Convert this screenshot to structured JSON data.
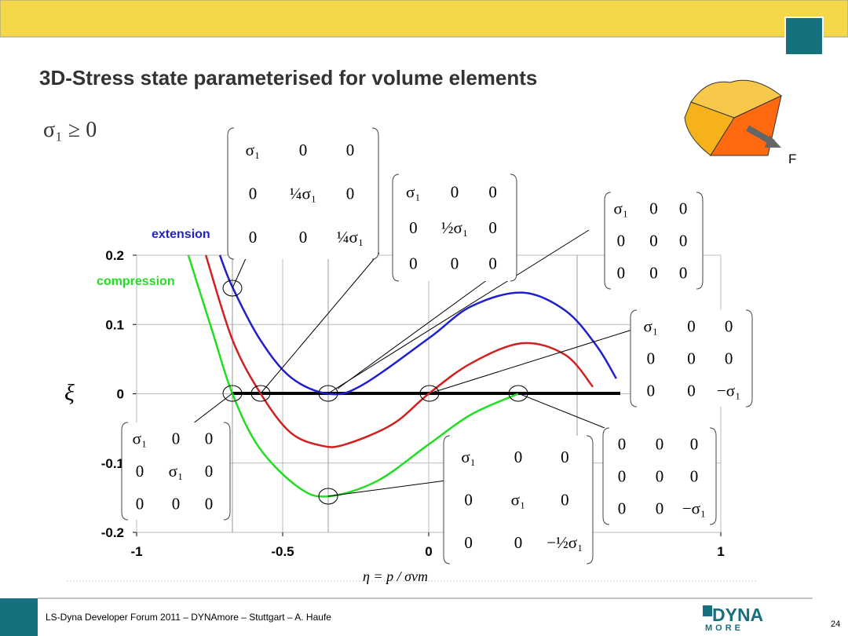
{
  "slide_title": "3D-Stress state parameterised for volume elements",
  "condition": "σ₁ ≥ 0",
  "force_label": "F",
  "footer": "LS-Dyna Developer Forum 2011 – DYNAmore – Stuttgart – A. Haufe",
  "page_number": "24",
  "logo": {
    "top": "DYNA",
    "bottom": "MORE"
  },
  "chart_data": {
    "type": "line",
    "y_label": "ξ",
    "x_label": "η = p / σvm",
    "xlim": [
      -1,
      1
    ],
    "ylim": [
      -0.2,
      0.2
    ],
    "xticks": [
      -1,
      -0.5,
      0,
      1
    ],
    "yticks": [
      -0.2,
      -0.1,
      0,
      0.1,
      0.2
    ],
    "grid": true,
    "series": [
      {
        "name": "extension",
        "color": "#1f1fd0",
        "x": [
          -0.715,
          -0.672,
          -0.58,
          -0.473,
          -0.344,
          -0.23,
          0,
          0.145,
          0.32,
          0.468,
          0.575,
          0.642
        ],
        "values": [
          0.2,
          0.154,
          0.08,
          0.024,
          0,
          0.012,
          0.08,
          0.126,
          0.146,
          0.12,
          0.069,
          0.022
        ]
      },
      {
        "name": "compression",
        "color": "#22dd22",
        "x": [
          -0.823,
          -0.742,
          -0.672,
          -0.58,
          -0.446,
          -0.344,
          -0.177,
          0,
          0.145,
          0.306
        ],
        "values": [
          0.2,
          0.092,
          0,
          -0.078,
          -0.135,
          -0.148,
          -0.126,
          -0.073,
          -0.03,
          0
        ]
      },
      {
        "color": "#d02020",
        "x": [
          -0.763,
          -0.672,
          -0.575,
          -0.473,
          -0.366,
          -0.285,
          -0.124,
          0,
          0.145,
          0.32,
          0.468,
          0.562
        ],
        "values": [
          0.2,
          0.078,
          0,
          -0.056,
          -0.075,
          -0.073,
          -0.044,
          0,
          0.044,
          0.073,
          0.056,
          0.01
        ]
      }
    ]
  },
  "matrices": [
    [
      [
        "σ₁",
        "0",
        "0"
      ],
      [
        "0",
        "¼σ₁",
        "0"
      ],
      [
        "0",
        "0",
        "¼σ₁"
      ]
    ],
    [
      [
        "σ₁",
        "0",
        "0"
      ],
      [
        "0",
        "½σ₁",
        "0"
      ],
      [
        "0",
        "0",
        "0"
      ]
    ],
    [
      [
        "σ₁",
        "0",
        "0"
      ],
      [
        "0",
        "0",
        "0"
      ],
      [
        "0",
        "0",
        "0"
      ]
    ],
    [
      [
        "σ₁",
        "0",
        "0"
      ],
      [
        "0",
        "0",
        "0"
      ],
      [
        "0",
        "0",
        "−σ₁"
      ]
    ],
    [
      [
        "σ₁",
        "0",
        "0"
      ],
      [
        "0",
        "σ₁",
        "0"
      ],
      [
        "0",
        "0",
        "0"
      ]
    ],
    [
      [
        "σ₁",
        "0",
        "0"
      ],
      [
        "0",
        "σ₁",
        "0"
      ],
      [
        "0",
        "0",
        "−½σ₁"
      ]
    ],
    [
      [
        "0",
        "0",
        "0"
      ],
      [
        "0",
        "0",
        "0"
      ],
      [
        "0",
        "0",
        "−σ₁"
      ]
    ]
  ]
}
